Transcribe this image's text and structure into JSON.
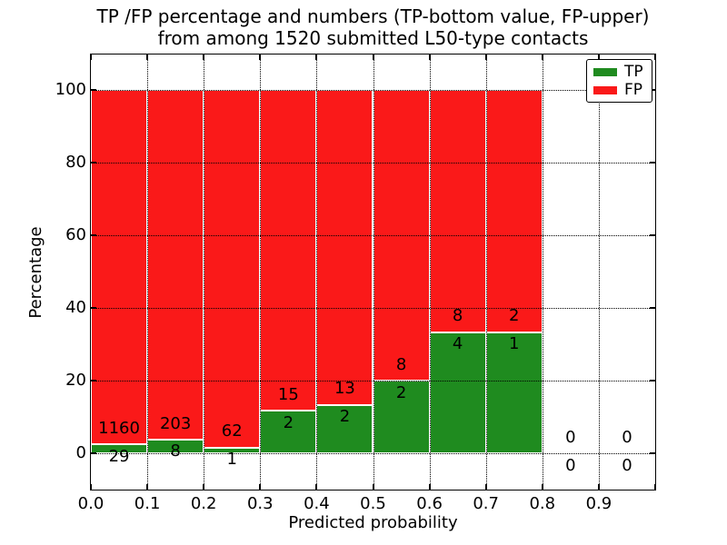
{
  "title": {
    "line1": "TP /FP percentage and numbers (TP-bottom value, FP-upper)",
    "line2": "from among 1520 submitted L50-type contacts"
  },
  "axes": {
    "xlabel": "Predicted probability",
    "ylabel": "Percentage"
  },
  "legend": {
    "position": "upper right",
    "items": [
      {
        "label": "TP",
        "color_key": "tp"
      },
      {
        "label": "FP",
        "color_key": "fp"
      }
    ]
  },
  "colors": {
    "tp": "#1f8b1f",
    "fp": "#fa1919",
    "text": "#000000",
    "background": "#ffffff"
  },
  "chart_data": {
    "type": "bar",
    "stacked": true,
    "units": "percent_of_bin",
    "title": "TP /FP percentage and numbers (TP-bottom value, FP-upper) from among 1520 submitted L50-type contacts",
    "xlabel": "Predicted probability",
    "ylabel": "Percentage",
    "total_contacts": 1520,
    "grid": true,
    "legend_position": "upper right",
    "xlim": [
      0.0,
      1.0
    ],
    "ylim": [
      -10,
      109.75
    ],
    "bin_width": 0.1,
    "x_tick_labels": [
      "0.0",
      "0.1",
      "0.2",
      "0.3",
      "0.4",
      "0.5",
      "0.6",
      "0.7",
      "0.8",
      "0.9"
    ],
    "y_tick_values": [
      0,
      20,
      40,
      60,
      80,
      100
    ],
    "series": [
      {
        "name": "TP",
        "color_key": "tp"
      },
      {
        "name": "FP",
        "color_key": "fp"
      }
    ],
    "bins": [
      {
        "x_start": 0.0,
        "x_end": 0.1,
        "tp": 29,
        "fp": 1160,
        "tp_percent": 2.44
      },
      {
        "x_start": 0.1,
        "x_end": 0.2,
        "tp": 8,
        "fp": 203,
        "tp_percent": 3.79
      },
      {
        "x_start": 0.2,
        "x_end": 0.3,
        "tp": 1,
        "fp": 62,
        "tp_percent": 1.59
      },
      {
        "x_start": 0.3,
        "x_end": 0.4,
        "tp": 2,
        "fp": 15,
        "tp_percent": 11.76
      },
      {
        "x_start": 0.4,
        "x_end": 0.5,
        "tp": 2,
        "fp": 13,
        "tp_percent": 13.33
      },
      {
        "x_start": 0.5,
        "x_end": 0.6,
        "tp": 2,
        "fp": 8,
        "tp_percent": 20.0
      },
      {
        "x_start": 0.6,
        "x_end": 0.7,
        "tp": 4,
        "fp": 8,
        "tp_percent": 33.33
      },
      {
        "x_start": 0.7,
        "x_end": 0.8,
        "tp": 1,
        "fp": 2,
        "tp_percent": 33.33
      },
      {
        "x_start": 0.8,
        "x_end": 0.9,
        "tp": 0,
        "fp": 0,
        "tp_percent": 0
      },
      {
        "x_start": 0.9,
        "x_end": 1.0,
        "tp": 0,
        "fp": 0,
        "tp_percent": 0
      }
    ]
  }
}
